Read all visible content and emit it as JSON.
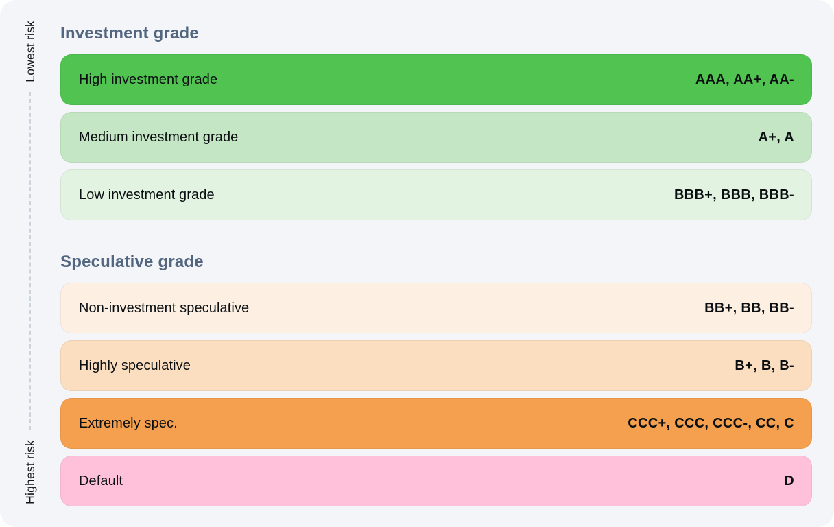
{
  "page": {
    "background_color": "#f3f5f9",
    "axis_line_color": "#ccd3dc",
    "heading_color": "#52667f"
  },
  "axis": {
    "top_label": "Lowest risk",
    "bottom_label": "Highest risk"
  },
  "sections": [
    {
      "title": "Investment grade",
      "rows": [
        {
          "label": "High investment grade",
          "ratings": "AAA, AA+, AA-",
          "color": "#50c351"
        },
        {
          "label": "Medium investment grade",
          "ratings": "A+, A",
          "color": "#c5e6c4"
        },
        {
          "label": "Low investment grade",
          "ratings": "BBB+, BBB, BBB-",
          "color": "#e2f3e2"
        }
      ]
    },
    {
      "title": "Speculative grade",
      "rows": [
        {
          "label": "Non-investment speculative",
          "ratings": "BB+, BB, BB-",
          "color": "#fdf0e3"
        },
        {
          "label": "Highly speculative",
          "ratings": "B+, B, B-",
          "color": "#fbddc0"
        },
        {
          "label": "Extremely spec.",
          "ratings": "CCC+, CCC, CCC-, CC, C",
          "color": "#f5a04f"
        },
        {
          "label": "Default",
          "ratings": "D",
          "color": "#ffc0da"
        }
      ]
    }
  ]
}
